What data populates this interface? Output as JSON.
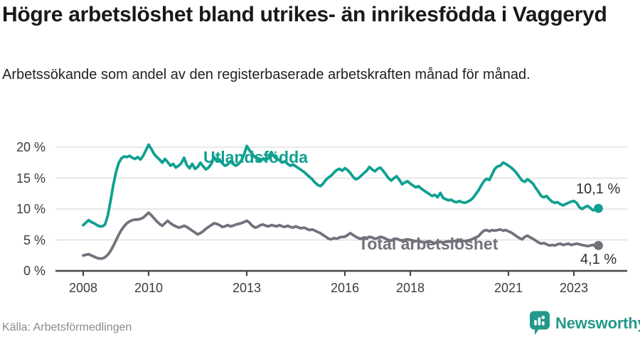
{
  "header": {
    "title": "Högre arbetslöshet bland utrikes- än inrikesfödda i Vaggeryd",
    "subtitle": "Arbetssökande som andel av den registerbaserade arbetskraften månad för månad."
  },
  "footer": {
    "source": "Källa: Arbetsförmedlingen",
    "brand": "Newsworthy"
  },
  "colors": {
    "accent_teal": "#10A091",
    "line_gray": "#74717C",
    "grid": "#dbdbdb",
    "axis": "#474747",
    "tick_text": "#3c3c3c",
    "brand_teal": "#23988A",
    "end_label_text": "#2d2d2d"
  },
  "chart_data": {
    "type": "line",
    "frequency": "monthly",
    "x_start": "2008-01",
    "x_end": "2023-10",
    "ylim": [
      0,
      20
    ],
    "grid": true,
    "yticks": [
      0,
      5,
      10,
      15,
      20
    ],
    "ytick_labels": [
      "0 %",
      "5 %",
      "10 %",
      "15 %",
      "20 %"
    ],
    "xticks": [
      2008,
      2010,
      2013,
      2016,
      2018,
      2021,
      2023
    ],
    "xtick_labels": [
      "2008",
      "2010",
      "2013",
      "2016",
      "2018",
      "2021",
      "2023"
    ],
    "series": [
      {
        "name": "Utlandsfödda",
        "color": "#10A091",
        "end_label": "10,1 %",
        "end_value": 10.1,
        "values": [
          7.4,
          7.8,
          8.2,
          7.9,
          7.7,
          7.4,
          7.2,
          7.2,
          7.5,
          8.9,
          11.2,
          13.8,
          15.9,
          17.4,
          18.2,
          18.5,
          18.4,
          18.6,
          18.3,
          18.1,
          18.4,
          18.0,
          18.6,
          19.5,
          20.4,
          19.7,
          18.9,
          18.4,
          18.0,
          17.5,
          18.1,
          17.6,
          17.0,
          17.3,
          16.7,
          17.0,
          17.4,
          18.3,
          17.1,
          16.6,
          17.3,
          16.5,
          16.8,
          17.5,
          16.9,
          16.4,
          16.7,
          17.3,
          18.4,
          17.7,
          18.0,
          17.4,
          17.0,
          17.2,
          17.7,
          17.3,
          17.0,
          17.3,
          17.8,
          18.8,
          20.2,
          19.5,
          18.9,
          18.4,
          18.0,
          17.7,
          18.2,
          17.8,
          18.3,
          19.2,
          18.5,
          18.1,
          17.9,
          17.5,
          17.7,
          17.3,
          17.0,
          17.2,
          16.9,
          16.6,
          16.3,
          16.0,
          15.6,
          15.2,
          14.8,
          14.3,
          13.9,
          13.7,
          14.1,
          14.7,
          15.1,
          15.4,
          15.9,
          16.3,
          16.5,
          16.2,
          16.6,
          16.3,
          15.8,
          15.2,
          14.8,
          15.0,
          15.4,
          15.8,
          16.2,
          16.8,
          16.4,
          16.1,
          16.5,
          16.7,
          16.2,
          15.6,
          15.0,
          14.6,
          15.0,
          15.3,
          14.7,
          14.0,
          14.3,
          14.5,
          14.1,
          13.8,
          13.5,
          13.7,
          13.3,
          13.0,
          12.7,
          12.4,
          12.1,
          12.3,
          11.9,
          12.6,
          11.8,
          11.6,
          11.4,
          11.5,
          11.2,
          11.1,
          11.3,
          11.1,
          11.0,
          11.2,
          11.4,
          11.8,
          12.4,
          13.0,
          13.8,
          14.5,
          14.9,
          14.7,
          15.6,
          16.5,
          16.9,
          17.0,
          17.5,
          17.3,
          17.0,
          16.7,
          16.3,
          15.8,
          15.2,
          14.6,
          14.4,
          14.8,
          14.5,
          14.1,
          13.4,
          12.8,
          12.1,
          11.9,
          12.1,
          11.6,
          11.2,
          11.0,
          11.1,
          10.8,
          10.6,
          10.8,
          11.0,
          11.2,
          11.3,
          11.0,
          10.3,
          10.0,
          10.3,
          10.5,
          10.2,
          9.8,
          9.9,
          10.1
        ]
      },
      {
        "name": "Total arbetslöshet",
        "color": "#74717C",
        "end_label": "4,1 %",
        "end_value": 4.1,
        "values": [
          2.5,
          2.6,
          2.7,
          2.5,
          2.3,
          2.1,
          2.0,
          2.0,
          2.2,
          2.6,
          3.2,
          4.0,
          4.9,
          5.8,
          6.6,
          7.2,
          7.7,
          8.0,
          8.2,
          8.3,
          8.3,
          8.4,
          8.6,
          9.0,
          9.4,
          9.0,
          8.5,
          8.0,
          7.6,
          7.3,
          7.7,
          8.1,
          7.7,
          7.4,
          7.2,
          7.0,
          7.1,
          7.3,
          7.1,
          6.8,
          6.5,
          6.2,
          5.9,
          6.1,
          6.4,
          6.8,
          7.1,
          7.4,
          7.7,
          7.6,
          7.4,
          7.1,
          7.2,
          7.4,
          7.2,
          7.3,
          7.5,
          7.6,
          7.7,
          7.9,
          8.1,
          7.8,
          7.3,
          7.0,
          7.1,
          7.4,
          7.5,
          7.3,
          7.2,
          7.4,
          7.3,
          7.2,
          7.4,
          7.2,
          7.1,
          7.3,
          7.1,
          7.0,
          7.2,
          7.0,
          6.9,
          7.0,
          6.8,
          6.6,
          6.7,
          6.5,
          6.3,
          6.1,
          5.8,
          5.5,
          5.2,
          5.1,
          5.3,
          5.2,
          5.4,
          5.5,
          5.5,
          5.8,
          6.1,
          5.8,
          5.5,
          5.3,
          5.2,
          5.4,
          5.3,
          5.5,
          5.4,
          5.2,
          5.3,
          5.5,
          5.4,
          5.2,
          5.0,
          4.9,
          5.1,
          5.2,
          5.0,
          4.9,
          5.0,
          5.1,
          5.0,
          4.9,
          4.8,
          4.9,
          4.7,
          4.6,
          4.7,
          4.8,
          4.6,
          4.5,
          4.6,
          4.7,
          4.6,
          4.7,
          4.8,
          4.7,
          4.8,
          4.9,
          5.0,
          4.9,
          4.8,
          4.9,
          5.0,
          5.2,
          5.4,
          5.6,
          6.1,
          6.5,
          6.6,
          6.4,
          6.6,
          6.5,
          6.6,
          6.7,
          6.5,
          6.6,
          6.4,
          6.2,
          5.9,
          5.6,
          5.3,
          5.1,
          5.5,
          5.7,
          5.4,
          5.2,
          4.9,
          4.6,
          4.4,
          4.5,
          4.3,
          4.1,
          4.2,
          4.1,
          4.3,
          4.4,
          4.2,
          4.3,
          4.4,
          4.2,
          4.3,
          4.4,
          4.3,
          4.2,
          4.1,
          4.0,
          4.1,
          4.2,
          4.0,
          4.1
        ]
      }
    ]
  }
}
